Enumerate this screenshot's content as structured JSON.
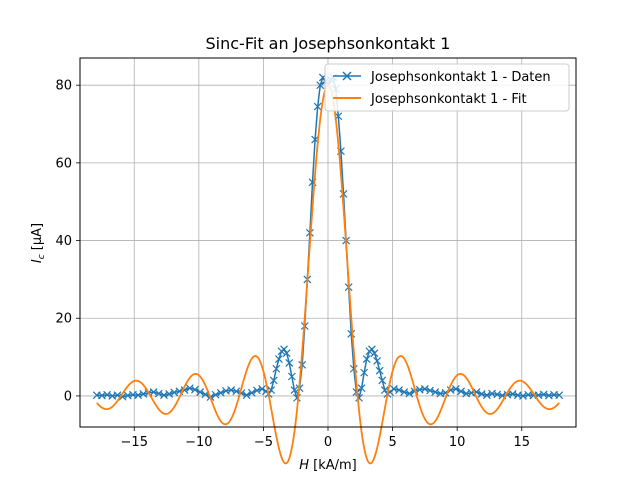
{
  "chart_data": {
    "type": "line",
    "title": "Sinc-Fit an Josephsonkontakt 1",
    "xlabel_var": "H",
    "xlabel_unit": " [kA/m]",
    "ylabel_var": "I",
    "ylabel_sub": "c",
    "ylabel_unit": " [µA]",
    "xlim": [
      -19.2,
      19.2
    ],
    "ylim": [
      -8,
      87
    ],
    "xticks": [
      -15,
      -10,
      -5,
      0,
      5,
      10,
      15
    ],
    "xtick_labels": [
      "−15",
      "−10",
      "−5",
      "0",
      "5",
      "10",
      "15"
    ],
    "yticks": [
      0,
      20,
      40,
      60,
      80
    ],
    "ytick_labels": [
      "0",
      "20",
      "40",
      "60",
      "80"
    ],
    "grid": true,
    "legend_position": "top-right",
    "colors": {
      "data": "#1f77b4",
      "fit": "#ff7f0e"
    },
    "series": [
      {
        "name": "Josephsonkontakt 1 - Daten",
        "marker": "x",
        "x": [
          -17.9,
          -17.5,
          -17.1,
          -16.7,
          -16.3,
          -15.9,
          -15.5,
          -15.1,
          -14.7,
          -14.3,
          -13.9,
          -13.5,
          -13.1,
          -12.7,
          -12.3,
          -11.9,
          -11.5,
          -11.1,
          -10.7,
          -10.3,
          -9.9,
          -9.5,
          -9.1,
          -8.7,
          -8.3,
          -7.9,
          -7.5,
          -7.1,
          -6.7,
          -6.3,
          -5.9,
          -5.5,
          -5.1,
          -4.8,
          -4.6,
          -4.4,
          -4.2,
          -4.0,
          -3.8,
          -3.6,
          -3.4,
          -3.2,
          -3.0,
          -2.8,
          -2.6,
          -2.4,
          -2.2,
          -2.0,
          -1.8,
          -1.6,
          -1.4,
          -1.2,
          -1.0,
          -0.8,
          -0.6,
          -0.4,
          -0.2,
          0.0,
          0.2,
          0.4,
          0.6,
          0.8,
          1.0,
          1.2,
          1.4,
          1.6,
          1.8,
          2.0,
          2.2,
          2.4,
          2.6,
          2.8,
          3.0,
          3.2,
          3.4,
          3.6,
          3.8,
          4.0,
          4.2,
          4.4,
          4.6,
          4.8,
          5.1,
          5.5,
          5.9,
          6.3,
          6.7,
          7.1,
          7.5,
          7.9,
          8.3,
          8.7,
          9.1,
          9.5,
          9.9,
          10.3,
          10.7,
          11.1,
          11.5,
          11.9,
          12.3,
          12.7,
          13.1,
          13.5,
          13.9,
          14.3,
          14.7,
          15.1,
          15.5,
          15.9,
          16.3,
          16.7,
          17.1,
          17.5,
          17.9
        ],
        "y": [
          0.2,
          0.1,
          0.3,
          0.0,
          0.2,
          -0.2,
          0.1,
          0.3,
          0.2,
          0.5,
          0.8,
          1.0,
          0.6,
          0.2,
          0.5,
          0.9,
          1.2,
          1.5,
          2.0,
          1.6,
          1.0,
          0.4,
          -0.3,
          0.3,
          0.8,
          1.3,
          1.5,
          1.2,
          0.7,
          0.2,
          0.8,
          1.4,
          1.8,
          1.2,
          0.5,
          1.5,
          4.0,
          7.0,
          9.5,
          11.5,
          12.0,
          11.0,
          8.5,
          5.0,
          1.5,
          -0.5,
          2.0,
          8.0,
          18.0,
          30.0,
          42.0,
          55.0,
          66.0,
          74.5,
          80.0,
          82.0,
          81.0,
          80.0,
          81.5,
          82.0,
          79.0,
          72.0,
          63.0,
          52.0,
          40.0,
          28.0,
          16.0,
          7.0,
          1.0,
          -0.5,
          2.0,
          6.0,
          9.5,
          11.5,
          12.0,
          11.0,
          9.0,
          6.5,
          4.0,
          1.5,
          0.5,
          1.0,
          1.8,
          1.5,
          1.0,
          0.6,
          1.2,
          1.6,
          1.8,
          1.4,
          1.0,
          0.6,
          0.8,
          1.5,
          1.8,
          1.2,
          0.6,
          0.8,
          1.0,
          0.5,
          0.2,
          0.6,
          0.4,
          0.1,
          0.3,
          0.5,
          0.2,
          0.0,
          0.3,
          0.1,
          0.2,
          0.4,
          0.1,
          0.3,
          0.2
        ]
      },
      {
        "name": "Josephsonkontakt 1 - Fit",
        "marker": "none",
        "model": {
          "I0": 80,
          "period": 2.29
        },
        "x_range": [
          -17.9,
          17.9
        ]
      }
    ]
  }
}
